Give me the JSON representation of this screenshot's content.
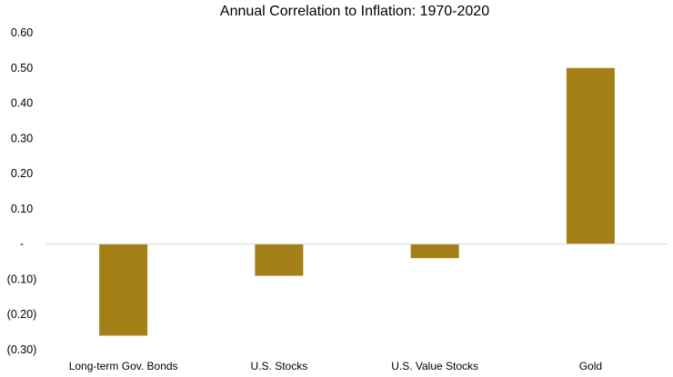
{
  "chart_data": {
    "type": "bar",
    "title": "Annual Correlation to Inflation: 1970-2020",
    "categories": [
      "Long-term Gov. Bonds",
      "U.S. Stocks",
      "U.S. Value Stocks",
      "Gold"
    ],
    "values": [
      -0.26,
      -0.09,
      -0.04,
      0.5
    ],
    "ylim": [
      -0.3,
      0.6
    ],
    "yticks": [
      0.6,
      0.5,
      0.4,
      0.3,
      0.2,
      0.1,
      0.0,
      -0.1,
      -0.2,
      -0.3
    ],
    "ytick_labels": [
      "0.60",
      "0.50",
      "0.40",
      "0.30",
      "0.20",
      "0.10",
      "-",
      "(0.10)",
      "(0.20)",
      "(0.30)"
    ],
    "xlabel": "",
    "ylabel": "",
    "grid": false,
    "legend": "none",
    "bar_color": "#A47F15",
    "axis_color": "#D9D9D9"
  }
}
